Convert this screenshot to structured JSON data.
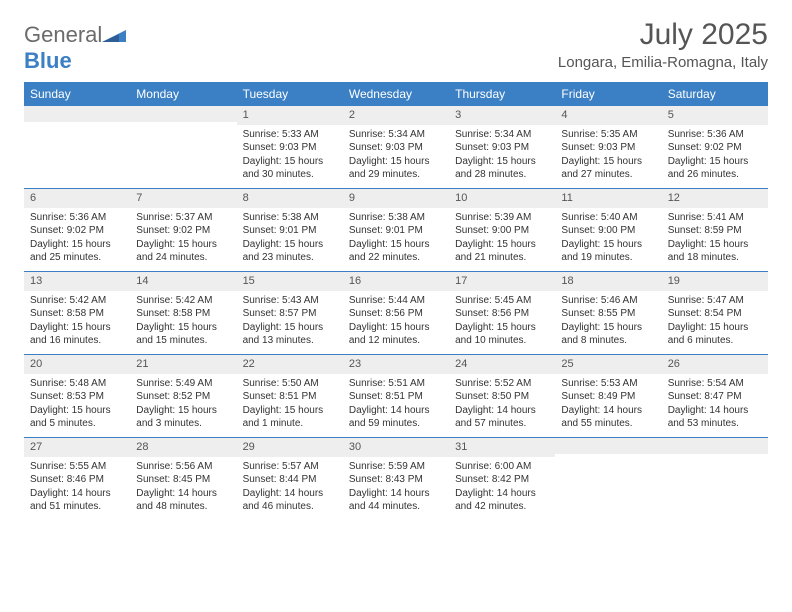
{
  "brand": {
    "name1": "General",
    "name2": "Blue"
  },
  "title": "July 2025",
  "location": "Longara, Emilia-Romagna, Italy",
  "colors": {
    "header_bg": "#3b7fc4",
    "header_text": "#ffffff",
    "row_stripe": "#eeeeee",
    "text": "#333333",
    "title_text": "#555555",
    "border": "#3b7fc4"
  },
  "day_names": [
    "Sunday",
    "Monday",
    "Tuesday",
    "Wednesday",
    "Thursday",
    "Friday",
    "Saturday"
  ],
  "weeks": [
    [
      {
        "n": "",
        "sr": "",
        "ss": "",
        "dl": ""
      },
      {
        "n": "",
        "sr": "",
        "ss": "",
        "dl": ""
      },
      {
        "n": "1",
        "sr": "Sunrise: 5:33 AM",
        "ss": "Sunset: 9:03 PM",
        "dl": "Daylight: 15 hours and 30 minutes."
      },
      {
        "n": "2",
        "sr": "Sunrise: 5:34 AM",
        "ss": "Sunset: 9:03 PM",
        "dl": "Daylight: 15 hours and 29 minutes."
      },
      {
        "n": "3",
        "sr": "Sunrise: 5:34 AM",
        "ss": "Sunset: 9:03 PM",
        "dl": "Daylight: 15 hours and 28 minutes."
      },
      {
        "n": "4",
        "sr": "Sunrise: 5:35 AM",
        "ss": "Sunset: 9:03 PM",
        "dl": "Daylight: 15 hours and 27 minutes."
      },
      {
        "n": "5",
        "sr": "Sunrise: 5:36 AM",
        "ss": "Sunset: 9:02 PM",
        "dl": "Daylight: 15 hours and 26 minutes."
      }
    ],
    [
      {
        "n": "6",
        "sr": "Sunrise: 5:36 AM",
        "ss": "Sunset: 9:02 PM",
        "dl": "Daylight: 15 hours and 25 minutes."
      },
      {
        "n": "7",
        "sr": "Sunrise: 5:37 AM",
        "ss": "Sunset: 9:02 PM",
        "dl": "Daylight: 15 hours and 24 minutes."
      },
      {
        "n": "8",
        "sr": "Sunrise: 5:38 AM",
        "ss": "Sunset: 9:01 PM",
        "dl": "Daylight: 15 hours and 23 minutes."
      },
      {
        "n": "9",
        "sr": "Sunrise: 5:38 AM",
        "ss": "Sunset: 9:01 PM",
        "dl": "Daylight: 15 hours and 22 minutes."
      },
      {
        "n": "10",
        "sr": "Sunrise: 5:39 AM",
        "ss": "Sunset: 9:00 PM",
        "dl": "Daylight: 15 hours and 21 minutes."
      },
      {
        "n": "11",
        "sr": "Sunrise: 5:40 AM",
        "ss": "Sunset: 9:00 PM",
        "dl": "Daylight: 15 hours and 19 minutes."
      },
      {
        "n": "12",
        "sr": "Sunrise: 5:41 AM",
        "ss": "Sunset: 8:59 PM",
        "dl": "Daylight: 15 hours and 18 minutes."
      }
    ],
    [
      {
        "n": "13",
        "sr": "Sunrise: 5:42 AM",
        "ss": "Sunset: 8:58 PM",
        "dl": "Daylight: 15 hours and 16 minutes."
      },
      {
        "n": "14",
        "sr": "Sunrise: 5:42 AM",
        "ss": "Sunset: 8:58 PM",
        "dl": "Daylight: 15 hours and 15 minutes."
      },
      {
        "n": "15",
        "sr": "Sunrise: 5:43 AM",
        "ss": "Sunset: 8:57 PM",
        "dl": "Daylight: 15 hours and 13 minutes."
      },
      {
        "n": "16",
        "sr": "Sunrise: 5:44 AM",
        "ss": "Sunset: 8:56 PM",
        "dl": "Daylight: 15 hours and 12 minutes."
      },
      {
        "n": "17",
        "sr": "Sunrise: 5:45 AM",
        "ss": "Sunset: 8:56 PM",
        "dl": "Daylight: 15 hours and 10 minutes."
      },
      {
        "n": "18",
        "sr": "Sunrise: 5:46 AM",
        "ss": "Sunset: 8:55 PM",
        "dl": "Daylight: 15 hours and 8 minutes."
      },
      {
        "n": "19",
        "sr": "Sunrise: 5:47 AM",
        "ss": "Sunset: 8:54 PM",
        "dl": "Daylight: 15 hours and 6 minutes."
      }
    ],
    [
      {
        "n": "20",
        "sr": "Sunrise: 5:48 AM",
        "ss": "Sunset: 8:53 PM",
        "dl": "Daylight: 15 hours and 5 minutes."
      },
      {
        "n": "21",
        "sr": "Sunrise: 5:49 AM",
        "ss": "Sunset: 8:52 PM",
        "dl": "Daylight: 15 hours and 3 minutes."
      },
      {
        "n": "22",
        "sr": "Sunrise: 5:50 AM",
        "ss": "Sunset: 8:51 PM",
        "dl": "Daylight: 15 hours and 1 minute."
      },
      {
        "n": "23",
        "sr": "Sunrise: 5:51 AM",
        "ss": "Sunset: 8:51 PM",
        "dl": "Daylight: 14 hours and 59 minutes."
      },
      {
        "n": "24",
        "sr": "Sunrise: 5:52 AM",
        "ss": "Sunset: 8:50 PM",
        "dl": "Daylight: 14 hours and 57 minutes."
      },
      {
        "n": "25",
        "sr": "Sunrise: 5:53 AM",
        "ss": "Sunset: 8:49 PM",
        "dl": "Daylight: 14 hours and 55 minutes."
      },
      {
        "n": "26",
        "sr": "Sunrise: 5:54 AM",
        "ss": "Sunset: 8:47 PM",
        "dl": "Daylight: 14 hours and 53 minutes."
      }
    ],
    [
      {
        "n": "27",
        "sr": "Sunrise: 5:55 AM",
        "ss": "Sunset: 8:46 PM",
        "dl": "Daylight: 14 hours and 51 minutes."
      },
      {
        "n": "28",
        "sr": "Sunrise: 5:56 AM",
        "ss": "Sunset: 8:45 PM",
        "dl": "Daylight: 14 hours and 48 minutes."
      },
      {
        "n": "29",
        "sr": "Sunrise: 5:57 AM",
        "ss": "Sunset: 8:44 PM",
        "dl": "Daylight: 14 hours and 46 minutes."
      },
      {
        "n": "30",
        "sr": "Sunrise: 5:59 AM",
        "ss": "Sunset: 8:43 PM",
        "dl": "Daylight: 14 hours and 44 minutes."
      },
      {
        "n": "31",
        "sr": "Sunrise: 6:00 AM",
        "ss": "Sunset: 8:42 PM",
        "dl": "Daylight: 14 hours and 42 minutes."
      },
      {
        "n": "",
        "sr": "",
        "ss": "",
        "dl": ""
      },
      {
        "n": "",
        "sr": "",
        "ss": "",
        "dl": ""
      }
    ]
  ]
}
